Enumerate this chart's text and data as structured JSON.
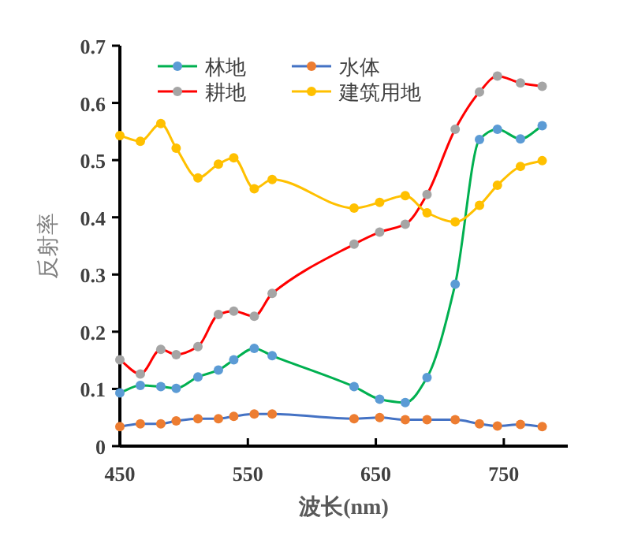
{
  "chart_data": {
    "type": "line",
    "xlabel": "波长(nm)",
    "ylabel": "反射率",
    "x": [
      450,
      466,
      482,
      494,
      511,
      527,
      539,
      555,
      569,
      633,
      653,
      673,
      690,
      712,
      731,
      745,
      763,
      780
    ],
    "xlim": [
      450,
      800
    ],
    "xticks": [
      450,
      550,
      650,
      750
    ],
    "ylim": [
      0,
      0.7
    ],
    "yticks": [
      0,
      0.1,
      0.2,
      0.3,
      0.4,
      0.5,
      0.6,
      0.7
    ],
    "grid": false,
    "legend": "top",
    "marker": "circle",
    "line_style": "solid",
    "series": [
      {
        "name": "林地",
        "color": "#00b050",
        "colors": [
          "#5b9bd5",
          "#5b9bd5",
          "#5b9bd5",
          "#5b9bd5",
          "#5b9bd5",
          "#5b9bd5",
          "#5b9bd5",
          "#5b9bd5",
          "#5b9bd5",
          "#5b9bd5",
          "#5b9bd5",
          "#5b9bd5",
          "#5b9bd5",
          "#5b9bd5",
          "#5b9bd5",
          "#5b9bd5",
          "#5b9bd5",
          "#5b9bd5"
        ],
        "values": [
          0.093,
          0.106,
          0.104,
          0.101,
          0.121,
          0.133,
          0.151,
          0.171,
          0.158,
          0.104,
          0.082,
          0.076,
          0.12,
          0.283,
          0.536,
          0.554,
          0.537,
          0.56
        ]
      },
      {
        "name": "水体",
        "color": "#4472c4",
        "colors": [
          "#ed7d31",
          "#ed7d31",
          "#ed7d31",
          "#ed7d31",
          "#ed7d31",
          "#ed7d31",
          "#ed7d31",
          "#ed7d31",
          "#ed7d31",
          "#ed7d31",
          "#ed7d31",
          "#ed7d31",
          "#ed7d31",
          "#ed7d31",
          "#ed7d31",
          "#ed7d31",
          "#ed7d31",
          "#ed7d31"
        ],
        "values": [
          0.034,
          0.039,
          0.039,
          0.044,
          0.048,
          0.048,
          0.052,
          0.056,
          0.056,
          0.048,
          0.05,
          0.046,
          0.046,
          0.046,
          0.039,
          0.035,
          0.038,
          0.034
        ]
      },
      {
        "name": "耕地",
        "color": "#ff0000",
        "colors": [
          "#a5a5a5",
          "#a5a5a5",
          "#a5a5a5",
          "#a5a5a5",
          "#a5a5a5",
          "#a5a5a5",
          "#a5a5a5",
          "#a5a5a5",
          "#a5a5a5",
          "#a5a5a5",
          "#a5a5a5",
          "#a5a5a5",
          "#a5a5a5",
          "#a5a5a5",
          "#a5a5a5",
          "#a5a5a5",
          "#a5a5a5",
          "#a5a5a5"
        ],
        "values": [
          0.151,
          0.126,
          0.169,
          0.16,
          0.174,
          0.23,
          0.236,
          0.227,
          0.267,
          0.353,
          0.374,
          0.388,
          0.44,
          0.554,
          0.619,
          0.647,
          0.635,
          0.629
        ]
      },
      {
        "name": "建筑用地",
        "color": "#ffc000",
        "colors": [
          "#ffc000",
          "#ffc000",
          "#ffc000",
          "#ffc000",
          "#ffc000",
          "#ffc000",
          "#ffc000",
          "#ffc000",
          "#ffc000",
          "#ffc000",
          "#ffc000",
          "#ffc000",
          "#ffc000",
          "#ffc000",
          "#ffc000",
          "#ffc000",
          "#ffc000",
          "#ffc000"
        ],
        "values": [
          0.543,
          0.533,
          0.564,
          0.521,
          0.469,
          0.493,
          0.504,
          0.45,
          0.466,
          0.416,
          0.426,
          0.438,
          0.408,
          0.392,
          0.421,
          0.456,
          0.489,
          0.499
        ]
      }
    ]
  }
}
